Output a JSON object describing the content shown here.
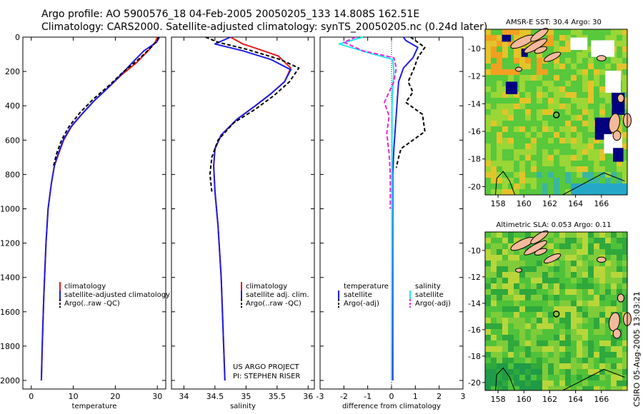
{
  "header": {
    "title_line1": "Argo profile: AO 5900576_18 04-Feb-2005 20050205_133 14.808S 162.51E",
    "title_line2": "Climatology: CARS2000. Satellite-adjusted climatology: synTS_20050205.nc (0.24d later)"
  },
  "credit": {
    "line1": "US ARGO PROJECT",
    "line2": "PI: STEPHEN RISER"
  },
  "side_label": "CSIRO 05-Aug-2005 13:03:21",
  "colors": {
    "red": "#e41a1c",
    "blue": "#1f1fe0",
    "black": "#000000",
    "cyan": "#22e5f0",
    "magenta": "#e22ae2",
    "land": "#f4b99c",
    "ocean": "#43c63f"
  },
  "chart_data": [
    {
      "id": "temperature",
      "type": "line",
      "xlabel": "temperature",
      "ylabel": "",
      "xlim": [
        -2,
        32
      ],
      "ylim": [
        0,
        2050
      ],
      "y_inverted": true,
      "xticks": [
        0,
        10,
        20,
        30
      ],
      "yticks": [
        0,
        200,
        400,
        600,
        800,
        1000,
        1200,
        1400,
        1600,
        1800,
        2000
      ],
      "legend": [
        "climatology",
        "satellite-adjusted climatology",
        "Argo(..raw -QC)"
      ],
      "series": [
        {
          "name": "climatology",
          "color": "#e41a1c",
          "dash": "",
          "x": [
            30.0,
            29.5,
            27.8,
            25.0,
            21.5,
            18.5,
            15.0,
            12.0,
            9.6,
            7.7,
            6.5,
            5.5,
            4.8,
            4.0,
            3.5,
            3.0,
            2.6,
            2.4
          ],
          "y": [
            0,
            30,
            80,
            150,
            220,
            290,
            370,
            450,
            520,
            600,
            680,
            750,
            850,
            1000,
            1200,
            1500,
            1800,
            2000
          ]
        },
        {
          "name": "satellite-adjusted climatology",
          "color": "#1f1fe0",
          "dash": "",
          "x": [
            30.5,
            29.8,
            26.8,
            24.0,
            21.3,
            18.5,
            15.0,
            12.0,
            9.5,
            7.6,
            6.4,
            5.5,
            4.8,
            4.0,
            3.5,
            3.0,
            2.6,
            2.4
          ],
          "y": [
            0,
            30,
            80,
            150,
            220,
            290,
            370,
            450,
            520,
            600,
            680,
            750,
            850,
            1000,
            1200,
            1500,
            1800,
            2000
          ]
        },
        {
          "name": "Argo(..raw -QC)",
          "color": "#000000",
          "dash": "5,3",
          "x": [
            30.2,
            30.0,
            28.5,
            25.5,
            22.0,
            18.6,
            14.8,
            11.6,
            9.0,
            7.2,
            6.0,
            5.2
          ],
          "y": [
            0,
            20,
            60,
            130,
            200,
            280,
            360,
            440,
            520,
            600,
            680,
            760
          ]
        }
      ]
    },
    {
      "id": "salinity",
      "type": "line",
      "xlabel": "salinity",
      "ylabel": "",
      "xlim": [
        33.8,
        36.1
      ],
      "ylim": [
        0,
        2050
      ],
      "y_inverted": true,
      "xticks": [
        34,
        34.5,
        35,
        35.5,
        36
      ],
      "yticks": [],
      "legend": [
        "climatology",
        "satellite adj. clim.",
        "Argo(..raw -QC)"
      ],
      "series": [
        {
          "name": "climatology",
          "color": "#e41a1c",
          "dash": "",
          "x": [
            34.75,
            34.95,
            35.2,
            35.52,
            35.72,
            35.62,
            35.4,
            35.15,
            34.85,
            34.6,
            34.5,
            34.48,
            34.5,
            34.55,
            34.6,
            34.63,
            34.66
          ],
          "y": [
            0,
            40,
            70,
            110,
            180,
            260,
            330,
            400,
            480,
            570,
            650,
            750,
            900,
            1100,
            1400,
            1700,
            2000
          ]
        },
        {
          "name": "satellite adj. clim.",
          "color": "#1f1fe0",
          "dash": "",
          "x": [
            34.75,
            34.5,
            34.95,
            35.4,
            35.72,
            35.62,
            35.4,
            35.15,
            34.85,
            34.6,
            34.5,
            34.48,
            34.5,
            34.55,
            34.6,
            34.63,
            34.66
          ],
          "y": [
            0,
            40,
            80,
            130,
            190,
            260,
            330,
            400,
            480,
            570,
            650,
            750,
            900,
            1100,
            1400,
            1700,
            2000
          ]
        },
        {
          "name": "Argo(..raw -QC)",
          "color": "#000000",
          "dash": "5,3",
          "x": [
            34.35,
            34.55,
            35.0,
            35.55,
            35.85,
            35.7,
            35.45,
            35.15,
            34.8,
            34.55,
            34.45,
            34.42,
            34.45
          ],
          "y": [
            0,
            30,
            70,
            130,
            180,
            260,
            340,
            420,
            500,
            600,
            700,
            800,
            900
          ]
        }
      ]
    },
    {
      "id": "difference",
      "type": "line",
      "xlabel": "difference from climatology",
      "ylabel": "",
      "xlim": [
        -3,
        3
      ],
      "ylim": [
        0,
        2050
      ],
      "y_inverted": true,
      "xticks": [
        -3,
        -2,
        -1,
        0,
        1,
        2,
        3
      ],
      "yticks": [],
      "legend_left": [
        "temperature",
        "satellite",
        "Argo(-adj)"
      ],
      "legend_right": [
        "salinity",
        "satellite",
        "Argo(-adj)"
      ],
      "series": [
        {
          "name": "temperature satellite",
          "color": "#1f1fe0",
          "dash": "",
          "x": [
            0.5,
            0.6,
            1.1,
            0.9,
            0.5,
            0.3,
            0.25,
            0.2,
            0.15,
            0.1,
            0.05,
            0.05,
            0.05,
            0.05
          ],
          "y": [
            0,
            20,
            60,
            120,
            180,
            260,
            350,
            450,
            550,
            650,
            800,
            1000,
            1400,
            2000
          ]
        },
        {
          "name": "temperature Argo(-adj)",
          "color": "#000000",
          "dash": "5,3",
          "x": [
            0.8,
            1.0,
            1.4,
            1.1,
            0.95,
            0.7,
            0.9,
            0.6,
            1.3,
            1.4,
            0.9,
            0.4,
            0.3,
            0.2
          ],
          "y": [
            0,
            20,
            60,
            120,
            180,
            260,
            320,
            380,
            450,
            550,
            600,
            650,
            700,
            760
          ]
        },
        {
          "name": "salinity satellite",
          "color": "#22e5f0",
          "dash": "",
          "x": [
            -1.2,
            -2.2,
            -1.0,
            0.05,
            0.1,
            0.05,
            0.02,
            0.02,
            0.02,
            0.0
          ],
          "y": [
            0,
            40,
            90,
            130,
            200,
            300,
            400,
            600,
            1000,
            2000
          ]
        },
        {
          "name": "salinity Argo(-adj)",
          "color": "#e22ae2",
          "dash": "6,3",
          "x": [
            -1.5,
            -2.0,
            -1.2,
            0.1,
            0.2,
            0.1,
            -0.3,
            -0.1,
            -0.2,
            -0.1,
            -0.05,
            -0.05
          ],
          "y": [
            0,
            30,
            80,
            120,
            180,
            260,
            380,
            460,
            560,
            680,
            800,
            1000
          ]
        }
      ]
    },
    {
      "id": "sst-map",
      "type": "heatmap",
      "title": "AMSR-E SST: 30.4 Argo: 30",
      "xlim": [
        157,
        168
      ],
      "ylim": [
        -20.6,
        -8.6
      ],
      "xticks": [
        158,
        160,
        162,
        164,
        166
      ],
      "yticks": [
        -10,
        -12,
        -14,
        -16,
        -18,
        -20
      ],
      "argo_position": {
        "lon": 162.51,
        "lat": -14.808
      }
    },
    {
      "id": "sla-map",
      "type": "heatmap",
      "title": "Altimetric SLA: 0.053 Argo: 0.11",
      "xlim": [
        157,
        168
      ],
      "ylim": [
        -20.6,
        -8.6
      ],
      "xticks": [
        158,
        160,
        162,
        164,
        166
      ],
      "yticks": [
        -10,
        -12,
        -14,
        -16,
        -18,
        -20
      ],
      "argo_position": {
        "lon": 162.51,
        "lat": -14.808
      }
    }
  ]
}
